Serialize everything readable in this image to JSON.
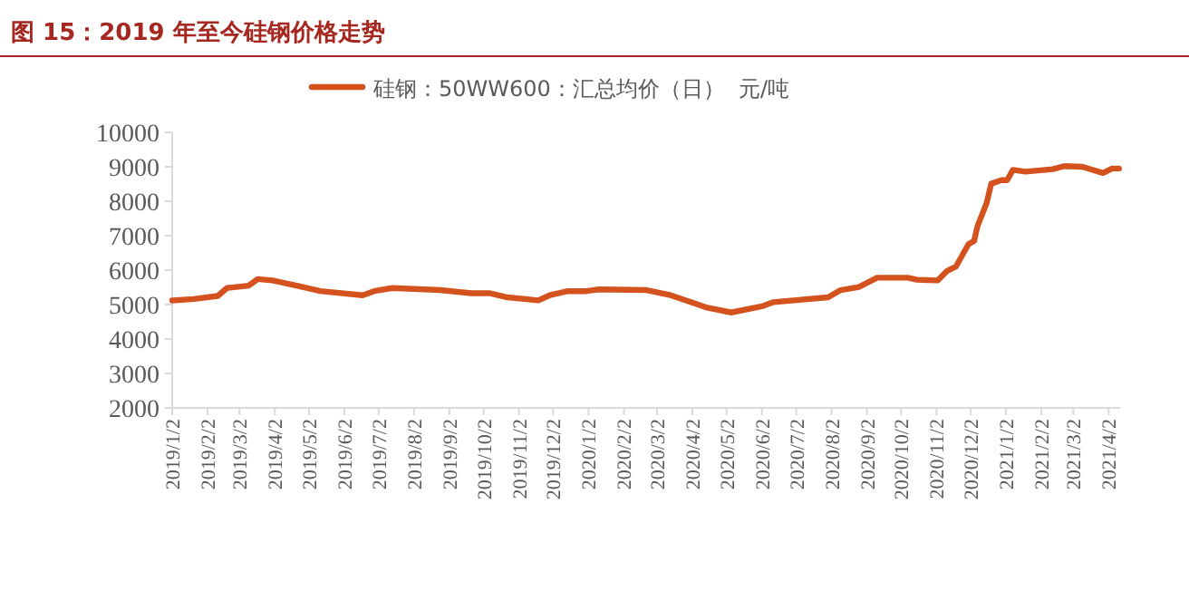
{
  "chart_data": {
    "type": "line",
    "title": "图 15：2019 年至今硅钢价格走势",
    "x": [
      "2019-01-02",
      "2019-01-21",
      "2019-02-11",
      "2019-02-19",
      "2019-03-10",
      "2019-03-18",
      "2019-03-31",
      "2019-04-21",
      "2019-05-12",
      "2019-06-18",
      "2019-06-28",
      "2019-07-14",
      "2019-08-25",
      "2019-09-21",
      "2019-10-07",
      "2019-10-23",
      "2019-11-19",
      "2019-11-29",
      "2019-12-15",
      "2019-12-31",
      "2020-01-11",
      "2020-02-22",
      "2020-03-14",
      "2020-04-15",
      "2020-05-06",
      "2020-06-02",
      "2020-06-12",
      "2020-07-30",
      "2020-08-10",
      "2020-08-26",
      "2020-09-11",
      "2020-10-08",
      "2020-10-16",
      "2020-11-03",
      "2020-11-11",
      "2020-11-19",
      "2020-11-30",
      "2020-12-05",
      "2020-12-08",
      "2020-12-16",
      "2020-12-20",
      "2020-12-29",
      "2021-01-03",
      "2021-01-08",
      "2021-01-19",
      "2021-02-12",
      "2021-02-22",
      "2021-03-10",
      "2021-03-28",
      "2021-04-05",
      "2021-04-11"
    ],
    "series": [
      {
        "name": "硅钢：50WW600：汇总均价（日）  元/吨",
        "color": "#d4521e",
        "values": [
          5120,
          5160,
          5250,
          5480,
          5550,
          5740,
          5700,
          5550,
          5390,
          5270,
          5390,
          5480,
          5420,
          5330,
          5330,
          5210,
          5120,
          5270,
          5390,
          5390,
          5440,
          5420,
          5270,
          4910,
          4770,
          4950,
          5070,
          5210,
          5420,
          5510,
          5780,
          5780,
          5720,
          5700,
          5970,
          6100,
          6750,
          6850,
          7280,
          7950,
          8510,
          8610,
          8610,
          8910,
          8860,
          8930,
          9020,
          9000,
          8820,
          8950,
          8950
        ]
      }
    ],
    "xlim": [
      "2019-01-02",
      "2021-04-12"
    ],
    "xticks": [
      {
        "value": "2019-01-02",
        "label": "2019/1/2"
      },
      {
        "value": "2019-02-02",
        "label": "2019/2/2"
      },
      {
        "value": "2019-03-02",
        "label": "2019/3/2"
      },
      {
        "value": "2019-04-02",
        "label": "2019/4/2"
      },
      {
        "value": "2019-05-02",
        "label": "2019/5/2"
      },
      {
        "value": "2019-06-02",
        "label": "2019/6/2"
      },
      {
        "value": "2019-07-02",
        "label": "2019/7/2"
      },
      {
        "value": "2019-08-02",
        "label": "2019/8/2"
      },
      {
        "value": "2019-09-02",
        "label": "2019/9/2"
      },
      {
        "value": "2019-10-02",
        "label": "2019/10/2"
      },
      {
        "value": "2019-11-02",
        "label": "2019/11/2"
      },
      {
        "value": "2019-12-02",
        "label": "2019/12/2"
      },
      {
        "value": "2020-01-02",
        "label": "2020/1/2"
      },
      {
        "value": "2020-02-02",
        "label": "2020/2/2"
      },
      {
        "value": "2020-03-02",
        "label": "2020/3/2"
      },
      {
        "value": "2020-04-02",
        "label": "2020/4/2"
      },
      {
        "value": "2020-05-02",
        "label": "2020/5/2"
      },
      {
        "value": "2020-06-02",
        "label": "2020/6/2"
      },
      {
        "value": "2020-07-02",
        "label": "2020/7/2"
      },
      {
        "value": "2020-08-02",
        "label": "2020/8/2"
      },
      {
        "value": "2020-09-02",
        "label": "2020/9/2"
      },
      {
        "value": "2020-10-02",
        "label": "2020/10/2"
      },
      {
        "value": "2020-11-02",
        "label": "2020/11/2"
      },
      {
        "value": "2020-12-02",
        "label": "2020/12/2"
      },
      {
        "value": "2021-01-02",
        "label": "2021/1/2"
      },
      {
        "value": "2021-02-02",
        "label": "2021/2/2"
      },
      {
        "value": "2021-03-02",
        "label": "2021/3/2"
      },
      {
        "value": "2021-04-02",
        "label": "2021/4/2"
      }
    ],
    "ylim": [
      2000,
      10000
    ],
    "yticks": [
      2000,
      3000,
      4000,
      5000,
      6000,
      7000,
      8000,
      9000,
      10000
    ],
    "legend": "top",
    "line_style": "solid"
  }
}
